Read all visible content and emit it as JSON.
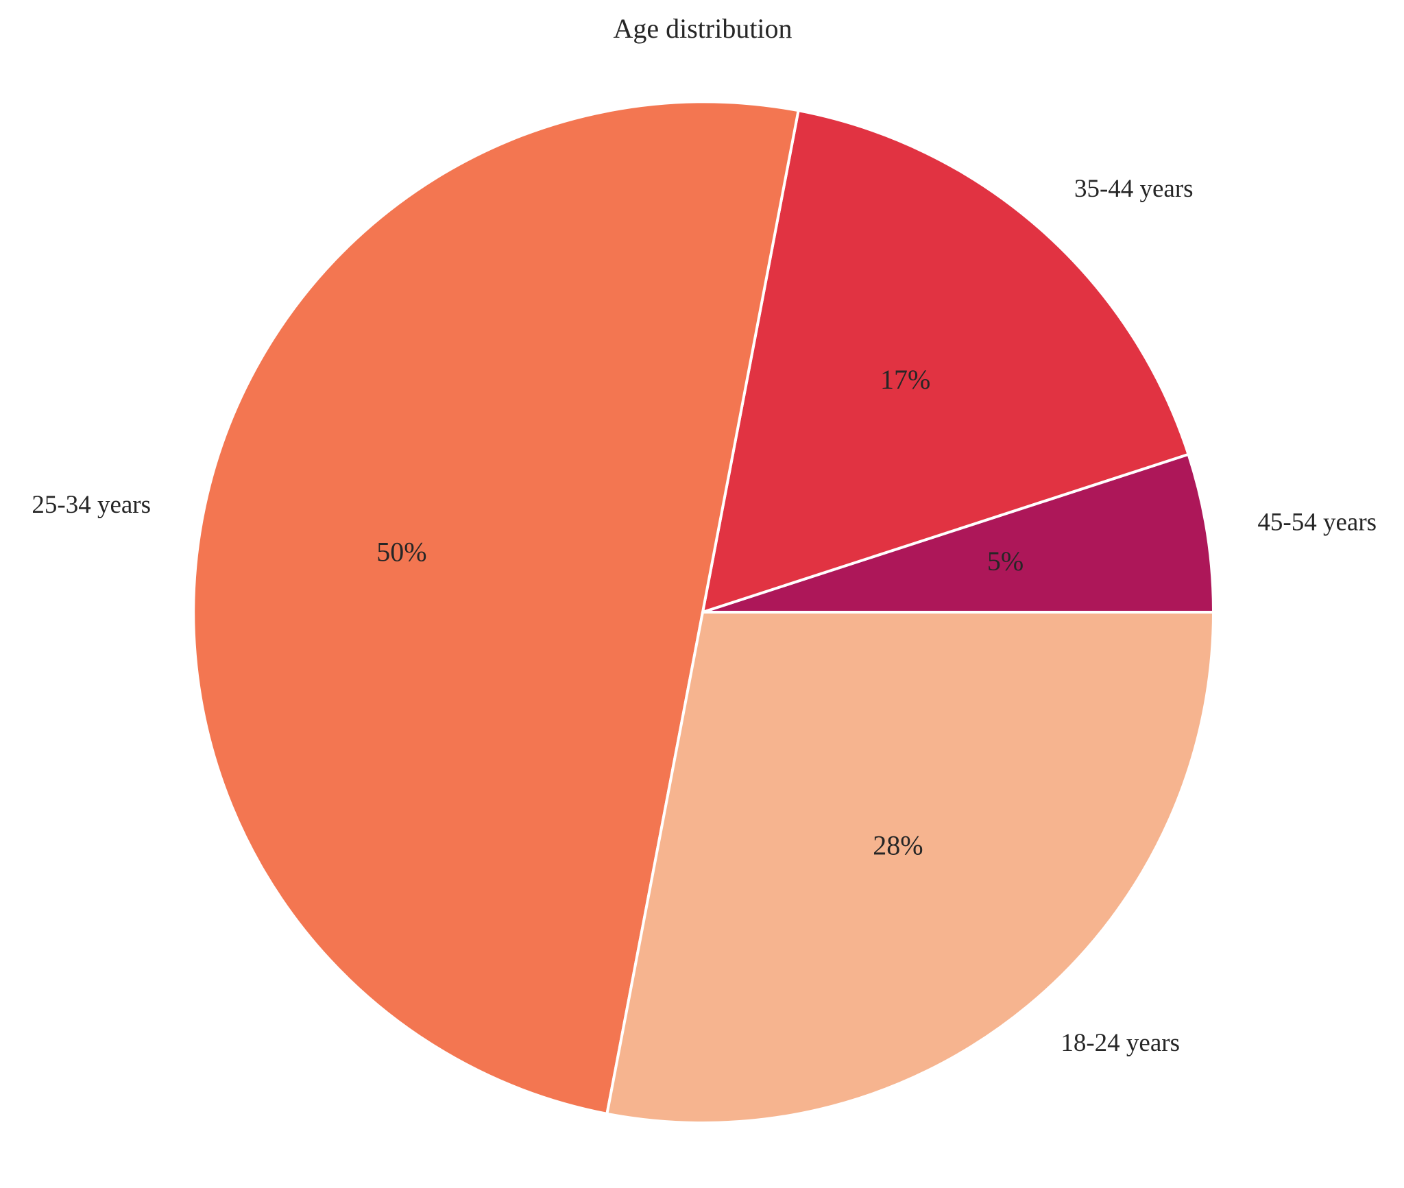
{
  "chart_data": {
    "type": "pie",
    "title": "Age distribution",
    "start_angle_deg": 0,
    "direction": "counterclockwise",
    "slices": [
      {
        "label": "45-54 years",
        "value": 5,
        "pct_label": "5%",
        "color": "#AD1759"
      },
      {
        "label": "35-44 years",
        "value": 17,
        "pct_label": "17%",
        "color": "#E13342"
      },
      {
        "label": "25-34 years",
        "value": 50,
        "pct_label": "50%",
        "color": "#F37651"
      },
      {
        "label": "18-24 years",
        "value": 28,
        "pct_label": "28%",
        "color": "#F6B48F"
      }
    ],
    "legend": "none"
  }
}
